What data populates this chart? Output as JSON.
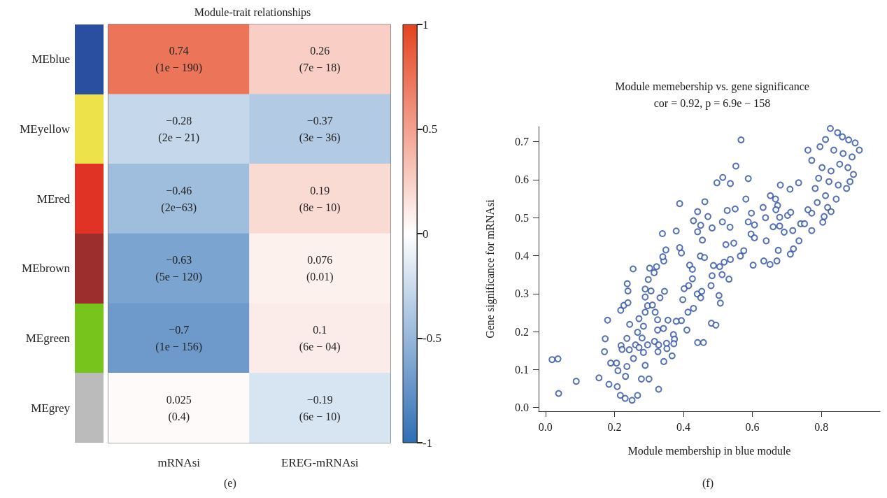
{
  "chart_data": [
    {
      "type": "heatmap",
      "title": "Module-trait relationships",
      "categories": [
        "mRNAsi",
        "EREG-mRNAsi"
      ],
      "y_categories": [
        "MEblue",
        "MEyellow",
        "MEred",
        "MEbrown",
        "MEgreen",
        "MEgrey"
      ],
      "cells": [
        [
          0.74,
          0.26
        ],
        [
          -0.28,
          -0.37
        ],
        [
          -0.46,
          0.19
        ],
        [
          -0.63,
          0.076
        ],
        [
          -0.7,
          0.1
        ],
        [
          0.025,
          -0.19
        ]
      ],
      "cell_labels": [
        [
          "0.74\n(1e − 190)",
          "0.26\n(7e − 18)"
        ],
        [
          "−0.28\n(2e − 21)",
          "−0.37\n(3e − 36)"
        ],
        [
          "−0.46\n(2e−63)",
          "0.19\n(8e − 10)"
        ],
        [
          "−0.63\n(5e − 120)",
          "0.076\n(0.01)"
        ],
        [
          "−0.7\n(1e − 156)",
          "0.1\n(6e − 04)"
        ],
        [
          "0.025\n(0.4)",
          "−0.19\n(6e − 10)"
        ]
      ],
      "clim": [
        -1,
        1
      ],
      "cticks": [
        -1,
        -0.5,
        0,
        0.5,
        1
      ],
      "annotations": [
        "(e)"
      ]
    },
    {
      "type": "scatter",
      "title": "Module memebership vs. gene significance",
      "subtitle": "cor = 0.92, p = 6.9e − 158",
      "xlabel": "Module membership in blue module",
      "ylabel": "Gene significance for mRNAsi",
      "marker": "circle",
      "grid": false,
      "xlim": [
        -0.02,
        0.97
      ],
      "ylim": [
        -0.01,
        0.74
      ],
      "xticks": [
        {
          "value": 0,
          "label": "0.0"
        },
        0.2,
        0.4,
        0.6,
        0.8
      ],
      "yticks": [
        {
          "value": 0,
          "label": "0.0"
        },
        0.1,
        0.2,
        0.3,
        0.4,
        0.5,
        0.6,
        0.7
      ],
      "annotations": [
        "(f)"
      ],
      "series": [
        {
          "color": "#2b4fa2",
          "x": [
            0.019,
            0.036,
            0.038,
            0.089,
            0.155,
            0.184,
            0.208,
            0.217,
            0.231,
            0.251,
            0.267,
            0.328,
            0.278,
            0.3,
            0.173,
            0.171,
            0.189,
            0.206,
            0.21,
            0.236,
            0.232,
            0.18,
            0.219,
            0.222,
            0.243,
            0.255,
            0.236,
            0.218,
            0.227,
            0.237,
            0.239,
            0.239,
            0.244,
            0.254,
            0.267,
            0.261,
            0.271,
            0.28,
            0.289,
            0.284,
            0.296,
            0.316,
            0.328,
            0.326,
            0.343,
            0.351,
            0.342,
            0.325,
            0.284,
            0.271,
            0.289,
            0.296,
            0.318,
            0.325,
            0.289,
            0.289,
            0.306,
            0.298,
            0.302,
            0.315,
            0.322,
            0.31,
            0.332,
            0.345,
            0.339,
            0.343,
            0.34,
            0.349,
            0.355,
            0.567,
            0.552,
            0.497,
            0.514,
            0.536,
            0.588,
            0.581,
            0.389,
            0.462,
            0.441,
            0.471,
            0.429,
            0.45,
            0.441,
            0.483,
            0.513,
            0.527,
            0.55,
            0.535,
            0.455,
            0.523,
            0.546,
            0.379,
            0.389,
            0.394,
            0.449,
            0.461,
            0.418,
            0.426,
            0.426,
            0.487,
            0.505,
            0.518,
            0.536,
            0.483,
            0.512,
            0.532,
            0.48,
            0.415,
            0.402,
            0.44,
            0.453,
            0.45,
            0.503,
            0.507,
            0.398,
            0.429,
            0.413,
            0.394,
            0.379,
            0.481,
            0.494,
            0.41,
            0.371,
            0.374,
            0.372,
            0.441,
            0.458,
            0.367,
            0.352,
            0.597,
            0.588,
            0.606,
            0.596,
            0.606,
            0.631,
            0.652,
            0.667,
            0.673,
            0.668,
            0.681,
            0.709,
            0.734,
            0.638,
            0.679,
            0.702,
            0.711,
            0.66,
            0.679,
            0.692,
            0.717,
            0.64,
            0.735,
            0.675,
            0.719,
            0.71,
            0.633,
            0.651,
            0.671,
            0.602,
            0.575,
            0.565,
            0.74,
            0.826,
            0.847,
            0.812,
            0.861,
            0.879,
            0.898,
            0.796,
            0.836,
            0.863,
            0.889,
            0.91,
            0.761,
            0.772,
            0.802,
            0.828,
            0.853,
            0.877,
            0.893,
            0.792,
            0.822,
            0.849,
            0.873,
            0.782,
            0.812,
            0.843,
            0.788,
            0.818,
            0.772,
            0.808,
            0.751,
            0.804,
            0.772,
            0.761,
            0.828,
            0.883
          ],
          "values": [
            0.126,
            0.128,
            0.037,
            0.069,
            0.078,
            0.061,
            0.055,
            0.032,
            0.024,
            0.019,
            0.032,
            0.048,
            0.075,
            0.075,
            0.181,
            0.147,
            0.117,
            0.117,
            0.097,
            0.108,
            0.082,
            0.23,
            0.163,
            0.153,
            0.152,
            0.129,
            0.182,
            0.256,
            0.269,
            0.326,
            0.307,
            0.276,
            0.219,
            0.365,
            0.198,
            0.165,
            0.158,
            0.183,
            0.111,
            0.145,
            0.165,
            0.174,
            0.165,
            0.147,
            0.121,
            0.169,
            0.208,
            0.204,
            0.214,
            0.234,
            0.251,
            0.268,
            0.251,
            0.231,
            0.291,
            0.312,
            0.307,
            0.337,
            0.367,
            0.355,
            0.371,
            0.27,
            0.289,
            0.306,
            0.458,
            0.386,
            0.397,
            0.415,
            0.23,
            0.705,
            0.636,
            0.592,
            0.606,
            0.59,
            0.603,
            0.549,
            0.537,
            0.542,
            0.516,
            0.503,
            0.492,
            0.48,
            0.463,
            0.473,
            0.489,
            0.519,
            0.523,
            0.475,
            0.441,
            0.429,
            0.433,
            0.465,
            0.421,
            0.407,
            0.399,
            0.395,
            0.375,
            0.364,
            0.339,
            0.374,
            0.371,
            0.383,
            0.39,
            0.347,
            0.35,
            0.338,
            0.321,
            0.321,
            0.313,
            0.299,
            0.306,
            0.289,
            0.295,
            0.275,
            0.284,
            0.261,
            0.251,
            0.229,
            0.227,
            0.222,
            0.217,
            0.204,
            0.192,
            0.18,
            0.168,
            0.171,
            0.171,
            0.136,
            0.155,
            0.512,
            0.489,
            0.481,
            0.457,
            0.447,
            0.527,
            0.558,
            0.549,
            0.532,
            0.521,
            0.586,
            0.575,
            0.592,
            0.5,
            0.501,
            0.506,
            0.514,
            0.476,
            0.478,
            0.462,
            0.466,
            0.439,
            0.439,
            0.414,
            0.418,
            0.404,
            0.386,
            0.377,
            0.386,
            0.375,
            0.413,
            0.399,
            0.484,
            0.735,
            0.724,
            0.706,
            0.713,
            0.705,
            0.697,
            0.687,
            0.678,
            0.669,
            0.66,
            0.678,
            0.678,
            0.651,
            0.632,
            0.623,
            0.641,
            0.632,
            0.614,
            0.604,
            0.595,
            0.586,
            0.577,
            0.577,
            0.558,
            0.549,
            0.54,
            0.527,
            0.512,
            0.503,
            0.484,
            0.488,
            0.466,
            0.521,
            0.516,
            0.595
          ]
        }
      ]
    }
  ]
}
